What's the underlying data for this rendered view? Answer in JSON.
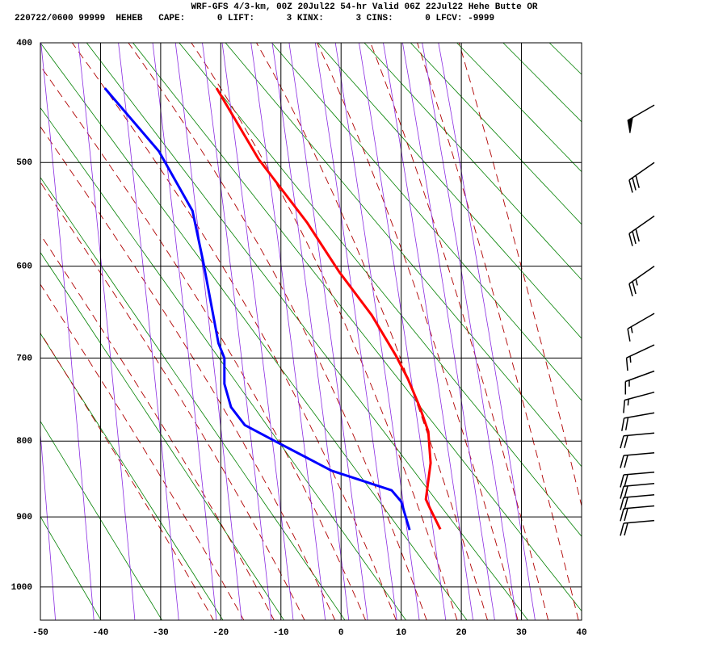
{
  "chart_data": {
    "type": "sounding",
    "title": "WRF-GFS 4/3-km, 00Z 20Jul22 54-hr Valid 06Z 22Jul22 Hehe Butte OR",
    "subtitle": "220722/0600 99999  HEHEB   CAPE:      0 LIFT:      3 KINX:      3 CINS:      0 LFCV: -9999",
    "xlim": [
      -50,
      40
    ],
    "xticks": [
      -50,
      -40,
      -30,
      -20,
      -10,
      0,
      10,
      20,
      30,
      40
    ],
    "ylim": [
      400,
      1050
    ],
    "yscale": "pressure-kappa",
    "yticks": [
      400,
      500,
      600,
      700,
      800,
      900,
      1000
    ],
    "grid": true,
    "series": [
      {
        "color": "#ff0000",
        "x": [
          -20.7,
          -13.7,
          -5.7,
          -0.3,
          5.1,
          9.1,
          11.1,
          13.1,
          14.5,
          14.9,
          14.1,
          14.9,
          16.5
        ],
        "y": [
          436,
          497,
          556,
          606,
          652,
          697,
          724,
          758,
          788,
          828,
          876,
          890,
          917
        ]
      },
      {
        "color": "#0000ff",
        "x": [
          -39.3,
          -30.3,
          -24.7,
          -22.9,
          -20.4,
          -19.4,
          -19.4,
          -18.3,
          -16.0,
          -11.0,
          -1.6,
          8.4,
          10.0,
          10.5,
          11.4
        ],
        "y": [
          436,
          490,
          545,
          596,
          683,
          700,
          730,
          758,
          780,
          800,
          838,
          864,
          879,
          893,
          918
        ]
      }
    ],
    "wind": {
      "color": "#000000",
      "pressure": [
        450,
        500,
        550,
        600,
        650,
        685,
        715,
        740,
        765,
        790,
        815,
        840,
        855,
        870,
        885,
        905
      ],
      "speed": [
        50,
        30,
        30,
        25,
        15,
        15,
        15,
        15,
        20,
        20,
        20,
        20,
        20,
        20,
        20,
        20
      ],
      "direction": [
        240,
        235,
        235,
        235,
        240,
        245,
        250,
        255,
        260,
        265,
        265,
        265,
        265,
        265,
        265,
        265
      ]
    }
  }
}
